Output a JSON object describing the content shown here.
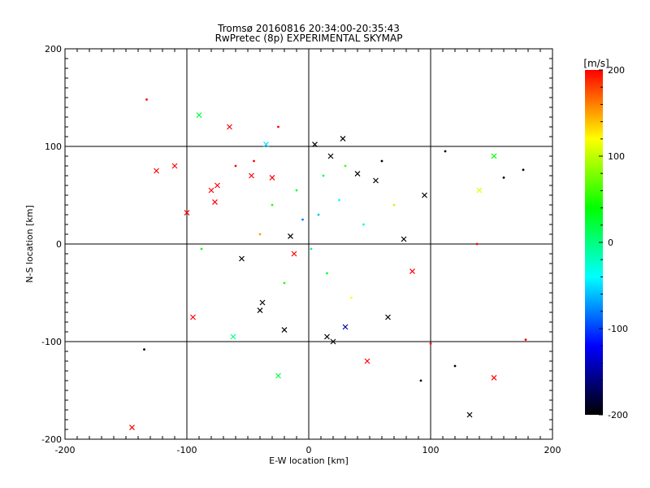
{
  "chart_data": {
    "type": "scatter",
    "title": "Tromsø 20160816 20:34:00-20:35:43",
    "subtitle": "RwPretec (8p) EXPERIMENTAL SKYMAP",
    "xlabel": "E-W location [km]",
    "ylabel": "N-S location [km]",
    "xlim": [
      -200,
      200
    ],
    "ylim": [
      -200,
      200
    ],
    "xticks": [
      "-200",
      "-100",
      "0",
      "100",
      "200"
    ],
    "yticks": [
      "-200",
      "-100",
      "0",
      "100",
      "200"
    ],
    "grid": true,
    "colorbar": {
      "label": "[m/s]",
      "range": [
        -200,
        200
      ],
      "ticks": [
        "200",
        "100",
        "0",
        "-100",
        "-200"
      ],
      "colormap": [
        "#000000",
        "#0000ff",
        "#00ffff",
        "#00ff00",
        "#ffff00",
        "#ff0000"
      ]
    },
    "markers": {
      "cross": [
        {
          "x": -145,
          "y": -188,
          "v": 200
        },
        {
          "x": -125,
          "y": 75,
          "v": 200
        },
        {
          "x": -110,
          "y": 80,
          "v": 200
        },
        {
          "x": -100,
          "y": 32,
          "v": 200
        },
        {
          "x": -95,
          "y": -75,
          "v": 200
        },
        {
          "x": -90,
          "y": 132,
          "v": 20
        },
        {
          "x": -80,
          "y": 55,
          "v": 200
        },
        {
          "x": -77,
          "y": 43,
          "v": 200
        },
        {
          "x": -75,
          "y": 60,
          "v": 200
        },
        {
          "x": -65,
          "y": 120,
          "v": 200
        },
        {
          "x": -62,
          "y": -95,
          "v": 0
        },
        {
          "x": -55,
          "y": -15,
          "v": -200
        },
        {
          "x": -47,
          "y": 70,
          "v": 200
        },
        {
          "x": -40,
          "y": -68,
          "v": -200
        },
        {
          "x": -38,
          "y": -60,
          "v": -200
        },
        {
          "x": -35,
          "y": 102,
          "v": -50
        },
        {
          "x": -30,
          "y": 68,
          "v": 200
        },
        {
          "x": -25,
          "y": -135,
          "v": 20
        },
        {
          "x": -20,
          "y": -88,
          "v": -200
        },
        {
          "x": -15,
          "y": 8,
          "v": -200
        },
        {
          "x": -12,
          "y": -10,
          "v": 200
        },
        {
          "x": 5,
          "y": 102,
          "v": -200
        },
        {
          "x": 15,
          "y": -95,
          "v": -200
        },
        {
          "x": 18,
          "y": 90,
          "v": -200
        },
        {
          "x": 20,
          "y": -100,
          "v": -200
        },
        {
          "x": 28,
          "y": 108,
          "v": -200
        },
        {
          "x": 30,
          "y": -85,
          "v": -150
        },
        {
          "x": 40,
          "y": 72,
          "v": -200
        },
        {
          "x": 48,
          "y": -120,
          "v": 200
        },
        {
          "x": 55,
          "y": 65,
          "v": -200
        },
        {
          "x": 65,
          "y": -75,
          "v": -200
        },
        {
          "x": 78,
          "y": 5,
          "v": -200
        },
        {
          "x": 85,
          "y": -28,
          "v": 200
        },
        {
          "x": 95,
          "y": 50,
          "v": -200
        },
        {
          "x": 132,
          "y": -175,
          "v": -200
        },
        {
          "x": 140,
          "y": 55,
          "v": 110
        },
        {
          "x": 152,
          "y": 90,
          "v": 40
        },
        {
          "x": 152,
          "y": -137,
          "v": 200
        }
      ],
      "dot": [
        {
          "x": -135,
          "y": -108,
          "v": -200
        },
        {
          "x": -133,
          "y": 148,
          "v": 200
        },
        {
          "x": -88,
          "y": -5,
          "v": 30
        },
        {
          "x": -60,
          "y": 80,
          "v": 200
        },
        {
          "x": -45,
          "y": 85,
          "v": 200
        },
        {
          "x": -40,
          "y": 10,
          "v": 150
        },
        {
          "x": -30,
          "y": 40,
          "v": 50
        },
        {
          "x": -25,
          "y": 120,
          "v": 200
        },
        {
          "x": -20,
          "y": -40,
          "v": 50
        },
        {
          "x": -10,
          "y": 55,
          "v": 20
        },
        {
          "x": -5,
          "y": 25,
          "v": -80
        },
        {
          "x": 2,
          "y": -5,
          "v": 0
        },
        {
          "x": 8,
          "y": 30,
          "v": -60
        },
        {
          "x": 12,
          "y": 70,
          "v": 10
        },
        {
          "x": 15,
          "y": -30,
          "v": 20
        },
        {
          "x": 25,
          "y": 45,
          "v": -40
        },
        {
          "x": 30,
          "y": 80,
          "v": 60
        },
        {
          "x": 35,
          "y": -55,
          "v": 120
        },
        {
          "x": 45,
          "y": 20,
          "v": -30
        },
        {
          "x": 60,
          "y": 85,
          "v": -200
        },
        {
          "x": 70,
          "y": 40,
          "v": 100
        },
        {
          "x": 92,
          "y": -140,
          "v": -200
        },
        {
          "x": 100,
          "y": -102,
          "v": 200
        },
        {
          "x": 112,
          "y": 95,
          "v": -200
        },
        {
          "x": 120,
          "y": -125,
          "v": -200
        },
        {
          "x": 138,
          "y": 0,
          "v": 200
        },
        {
          "x": 160,
          "y": 68,
          "v": -200
        },
        {
          "x": 176,
          "y": 76,
          "v": -200
        },
        {
          "x": 178,
          "y": -98,
          "v": 200
        }
      ]
    }
  }
}
